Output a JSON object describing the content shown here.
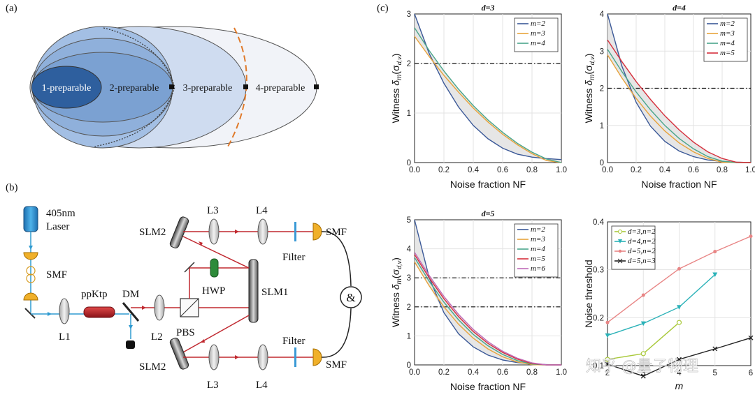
{
  "panel_labels": {
    "a": "(a)",
    "b": "(b)",
    "c": "(c)"
  },
  "panel_a": {
    "sets": [
      "1-preparable",
      "2-preparable",
      "3-preparable",
      "4-preparable"
    ]
  },
  "panel_b": {
    "labels": {
      "laser_line1": "405nm",
      "laser_line2": "Laser",
      "smf_source": "SMF",
      "ppktp": "ppKtp",
      "dm": "DM",
      "l1": "L1",
      "l2": "L2",
      "pbs": "PBS",
      "hwp": "HWP",
      "slm1": "SLM1",
      "slm2_top": "SLM2",
      "slm2_bottom": "SLM2",
      "l3_top": "L3",
      "l4_top": "L4",
      "l3_bottom": "L3",
      "l4_bottom": "L4",
      "filter_top": "Filter",
      "filter_bottom": "Filter",
      "smf_top": "SMF",
      "smf_bottom": "SMF",
      "coincidence": "&"
    }
  },
  "watermark": "知乎 @量子物理",
  "chart_data": [
    {
      "type": "line",
      "title": "d=3",
      "xlabel": "Noise fraction NF",
      "ylabel_main": "Witness ",
      "ylabel_math": "δ",
      "ylabel_sub": "m",
      "ylabel_arg": "(σ",
      "ylabel_argsub": "d,v",
      "ylabel_close": ")",
      "xlim": [
        0,
        1
      ],
      "ylim": [
        0,
        3
      ],
      "xticks": [
        "0.0",
        "0.2",
        "0.4",
        "0.6",
        "0.8",
        "1.0"
      ],
      "yticks": [
        "0",
        "1",
        "2",
        "3"
      ],
      "hline": 2,
      "x": [
        0,
        0.1,
        0.2,
        0.3,
        0.4,
        0.5,
        0.6,
        0.7,
        0.8,
        0.9,
        1.0
      ],
      "series": [
        {
          "name": "m=2",
          "color": "#3b5998",
          "values": [
            3.0,
            2.2,
            1.6,
            1.12,
            0.75,
            0.48,
            0.29,
            0.17,
            0.11,
            0.08,
            0.06
          ]
        },
        {
          "name": "m=3",
          "color": "#e8a33b",
          "values": [
            2.55,
            2.14,
            1.76,
            1.42,
            1.1,
            0.82,
            0.57,
            0.36,
            0.18,
            0.04,
            0.0
          ]
        },
        {
          "name": "m=4",
          "color": "#4aa58a",
          "values": [
            2.72,
            2.26,
            1.85,
            1.48,
            1.15,
            0.86,
            0.61,
            0.39,
            0.21,
            0.07,
            0.0
          ]
        }
      ],
      "legend": "top-right",
      "grid": true
    },
    {
      "type": "line",
      "title": "d=4",
      "xlabel": "Noise fraction NF",
      "ylabel_main": "Witness ",
      "ylabel_math": "δ",
      "ylabel_sub": "m",
      "ylabel_arg": "(σ",
      "ylabel_argsub": "d,v",
      "ylabel_close": ")",
      "xlim": [
        0,
        1
      ],
      "ylim": [
        0,
        4
      ],
      "xticks": [
        "0.0",
        "0.2",
        "0.4",
        "0.6",
        "0.8",
        "1.0"
      ],
      "yticks": [
        "0",
        "1",
        "2",
        "3",
        "4"
      ],
      "hline": 2,
      "x": [
        0,
        0.1,
        0.2,
        0.3,
        0.4,
        0.5,
        0.6,
        0.7,
        0.8,
        0.9,
        1.0
      ],
      "series": [
        {
          "name": "m=2",
          "color": "#3b5998",
          "values": [
            4.0,
            2.6,
            1.62,
            0.98,
            0.57,
            0.31,
            0.16,
            0.07,
            0.03,
            0.01,
            0.0
          ]
        },
        {
          "name": "m=3",
          "color": "#e8a33b",
          "values": [
            2.9,
            2.28,
            1.73,
            1.25,
            0.85,
            0.53,
            0.29,
            0.11,
            0.01,
            0.0,
            0.0
          ]
        },
        {
          "name": "m=4",
          "color": "#4aa58a",
          "values": [
            3.05,
            2.45,
            1.9,
            1.42,
            1.0,
            0.65,
            0.37,
            0.16,
            0.04,
            0.0,
            0.0
          ]
        },
        {
          "name": "m=5",
          "color": "#d62f3c",
          "values": [
            3.3,
            2.72,
            2.18,
            1.7,
            1.26,
            0.88,
            0.55,
            0.29,
            0.11,
            0.01,
            0.0
          ]
        }
      ],
      "legend": "top-right",
      "grid": true
    },
    {
      "type": "line",
      "title": "d=5",
      "xlabel": "Noise fraction NF",
      "ylabel_main": "Witness ",
      "ylabel_math": "δ",
      "ylabel_sub": "m",
      "ylabel_arg": "(σ",
      "ylabel_argsub": "d,v",
      "ylabel_close": ")",
      "xlim": [
        0,
        1
      ],
      "ylim": [
        0,
        5
      ],
      "xticks": [
        "0.0",
        "0.2",
        "0.4",
        "0.6",
        "0.8",
        "1.0"
      ],
      "yticks": [
        "0",
        "1",
        "2",
        "3",
        "4",
        "5"
      ],
      "hlines": [
        2,
        3
      ],
      "x": [
        0,
        0.1,
        0.2,
        0.3,
        0.4,
        0.5,
        0.6,
        0.7,
        0.8,
        0.9,
        1.0
      ],
      "series": [
        {
          "name": "m=2",
          "color": "#3b5998",
          "values": [
            5.0,
            3.0,
            1.8,
            1.07,
            0.62,
            0.34,
            0.17,
            0.08,
            0.03,
            0.01,
            0.0
          ]
        },
        {
          "name": "m=3",
          "color": "#e8a33b",
          "values": [
            3.55,
            2.72,
            2.0,
            1.4,
            0.92,
            0.55,
            0.28,
            0.1,
            0.01,
            0.0,
            0.0
          ]
        },
        {
          "name": "m=4",
          "color": "#4aa58a",
          "values": [
            3.7,
            2.88,
            2.16,
            1.55,
            1.05,
            0.66,
            0.36,
            0.15,
            0.03,
            0.0,
            0.0
          ]
        },
        {
          "name": "m=5",
          "color": "#d62f3c",
          "values": [
            3.8,
            3.0,
            2.28,
            1.66,
            1.15,
            0.74,
            0.43,
            0.2,
            0.05,
            0.0,
            0.0
          ]
        },
        {
          "name": "m=6",
          "color": "#c06ab8",
          "values": [
            3.88,
            3.08,
            2.36,
            1.74,
            1.22,
            0.8,
            0.47,
            0.23,
            0.07,
            0.0,
            0.0
          ]
        }
      ],
      "legend": "top-right",
      "grid": true
    },
    {
      "type": "line",
      "title": "",
      "xlabel": "m",
      "ylabel": "Noise threshold",
      "xlim": [
        2,
        6
      ],
      "ylim": [
        0.1,
        0.4
      ],
      "xticks": [
        "2",
        "3",
        "4",
        "5",
        "6"
      ],
      "yticks": [
        "0.1",
        "0.2",
        "0.3",
        "0.4"
      ],
      "series": [
        {
          "name": "d=3,n=2",
          "color": "#a9c93a",
          "marker": "circle",
          "x": [
            2,
            3,
            4
          ],
          "values": [
            0.113,
            0.125,
            0.19
          ]
        },
        {
          "name": "d=4,n=2",
          "color": "#2bb2b8",
          "marker": "triangle",
          "x": [
            2,
            3,
            4,
            5
          ],
          "values": [
            0.163,
            0.188,
            0.222,
            0.29
          ]
        },
        {
          "name": "d=5,n=2",
          "color": "#e88585",
          "marker": "dot",
          "x": [
            2,
            3,
            4,
            5,
            6
          ],
          "values": [
            0.19,
            0.247,
            0.302,
            0.338,
            0.37
          ]
        },
        {
          "name": "d=5,n=3",
          "color": "#222222",
          "marker": "x",
          "x": [
            2,
            3,
            4,
            5,
            6
          ],
          "values": [
            0.103,
            0.078,
            0.113,
            0.135,
            0.158
          ]
        }
      ],
      "legend": "top-left",
      "grid": true
    }
  ]
}
